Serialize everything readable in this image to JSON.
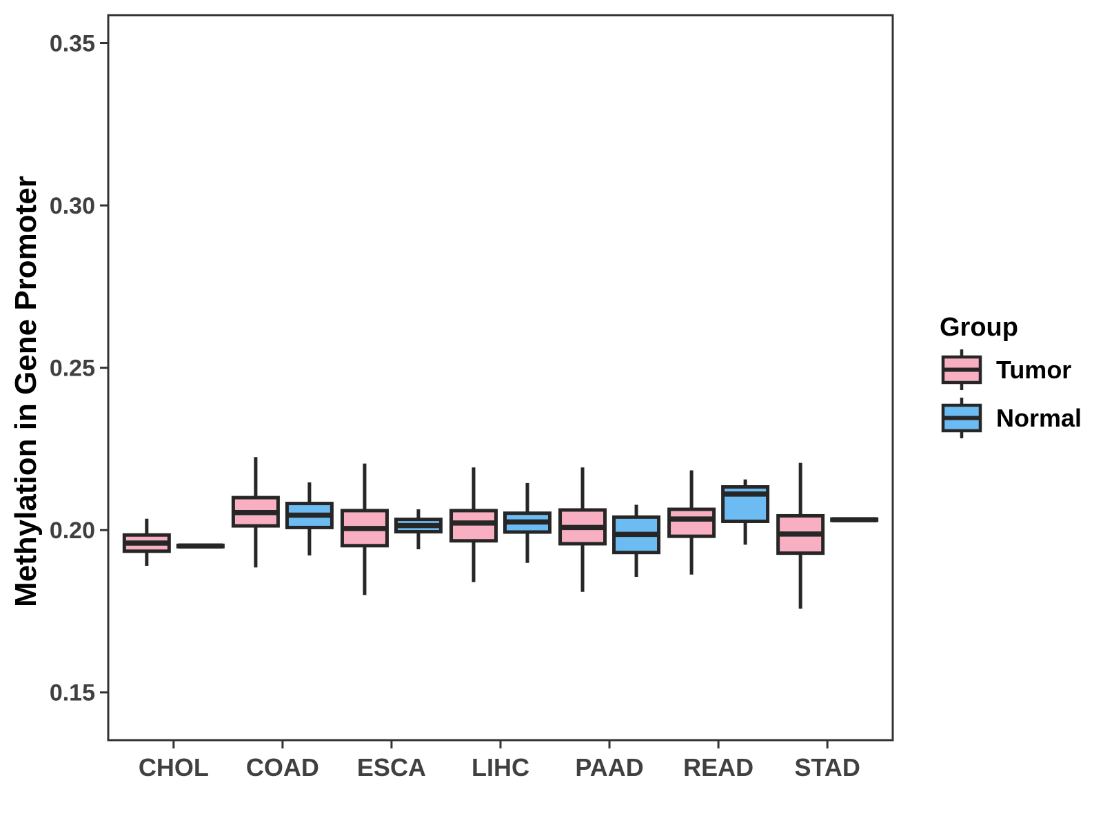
{
  "chart_data": {
    "type": "boxplot",
    "title": "",
    "xlabel": "",
    "ylabel": "Methylation in Gene Promoter",
    "legend_title": "Group",
    "legend_position": "right",
    "grid": false,
    "categories": [
      "CHOL",
      "COAD",
      "ESCA",
      "LIHC",
      "PAAD",
      "READ",
      "STAD"
    ],
    "ylim": [
      0.1353,
      0.3586
    ],
    "y_ticks": [
      {
        "value": 0.15,
        "label": "0.15"
      },
      {
        "value": 0.2,
        "label": "0.20"
      },
      {
        "value": 0.25,
        "label": "0.25"
      },
      {
        "value": 0.3,
        "label": "0.30"
      },
      {
        "value": 0.35,
        "label": "0.35"
      }
    ],
    "summary_order": [
      "min",
      "q1",
      "median",
      "q3",
      "max"
    ],
    "groups": [
      {
        "name": "Tumor",
        "fill": "#F9AFC2",
        "values": [
          [
            0.189,
            0.1935,
            0.196,
            0.1985,
            0.2035
          ],
          [
            0.1885,
            0.2013,
            0.2054,
            0.21,
            0.2225
          ],
          [
            0.18,
            0.1952,
            0.2005,
            0.206,
            0.2205
          ],
          [
            0.184,
            0.1967,
            0.2022,
            0.206,
            0.2193
          ],
          [
            0.181,
            0.1958,
            0.2008,
            0.2062,
            0.2193
          ],
          [
            0.1863,
            0.1981,
            0.2034,
            0.2064,
            0.2184
          ],
          [
            0.1758,
            0.1929,
            0.1988,
            0.2044,
            0.2207
          ]
        ]
      },
      {
        "name": "Normal",
        "fill": "#6CBBF2",
        "values": [
          [
            0.1945,
            0.1949,
            0.1951,
            0.1953,
            0.1957
          ],
          [
            0.1922,
            0.2008,
            0.2046,
            0.2082,
            0.2147
          ],
          [
            0.1941,
            0.1995,
            0.2014,
            0.2033,
            0.2064
          ],
          [
            0.1899,
            0.1994,
            0.2025,
            0.2052,
            0.2145
          ],
          [
            0.1856,
            0.1931,
            0.1987,
            0.204,
            0.2078
          ],
          [
            0.1955,
            0.2027,
            0.2111,
            0.2133,
            0.2156
          ],
          [
            0.2028,
            0.203,
            0.2032,
            0.2034,
            0.2036
          ]
        ]
      }
    ],
    "colors": {
      "box_stroke": "#262626",
      "panel_stroke": "#333333",
      "tick_text": "#404040",
      "title_text": "#000000"
    }
  },
  "legend": {
    "title": "Group",
    "items": [
      {
        "label": "Tumor"
      },
      {
        "label": "Normal"
      }
    ]
  }
}
